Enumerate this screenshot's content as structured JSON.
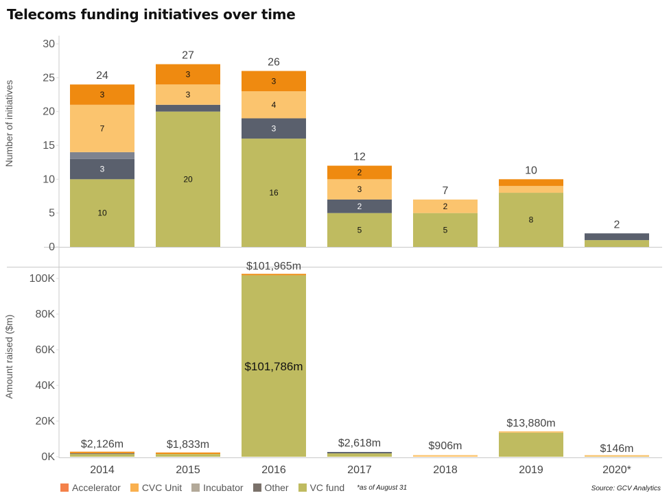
{
  "title": "Telecoms funding initiatives over time",
  "chart_data": [
    {
      "type": "bar",
      "stacked": true,
      "title": "Telecoms funding initiatives over time",
      "ylabel": "Number of initiatives",
      "xlabel": "",
      "ylim": [
        0,
        30
      ],
      "yticks": [
        0,
        5,
        10,
        15,
        20,
        25,
        30
      ],
      "ytick_labels": [
        "0",
        "5",
        "10",
        "15",
        "20",
        "25",
        "30"
      ],
      "categories": [
        "2014",
        "2015",
        "2016",
        "2017",
        "2018",
        "2019",
        "2020*"
      ],
      "series": [
        {
          "name": "VC fund",
          "color": "#BFBB60",
          "values": [
            10,
            20,
            16,
            5,
            5,
            8,
            1
          ],
          "labels": [
            "10",
            "20",
            "16",
            "5",
            "5",
            "8",
            ""
          ]
        },
        {
          "name": "Other",
          "color": "#5A606D",
          "values": [
            3,
            1,
            3,
            2,
            0,
            0,
            1
          ],
          "labels": [
            "3",
            "",
            "3",
            "2",
            "",
            "",
            ""
          ]
        },
        {
          "name": "Incubator",
          "color": "#7E838F",
          "values": [
            1,
            0,
            0,
            0,
            0,
            0,
            0
          ],
          "labels": [
            "",
            "",
            "",
            "",
            "",
            "",
            ""
          ]
        },
        {
          "name": "CVC Unit",
          "color": "#FBC46E",
          "values": [
            7,
            3,
            4,
            3,
            2,
            1,
            0
          ],
          "labels": [
            "7",
            "3",
            "4",
            "3",
            "2",
            "",
            ""
          ]
        },
        {
          "name": "Accelerator",
          "color": "#EF8A10",
          "values": [
            3,
            3,
            3,
            2,
            0,
            1,
            0
          ],
          "labels": [
            "3",
            "3",
            "3",
            "2",
            "",
            "",
            ""
          ]
        }
      ],
      "totals": [
        24,
        27,
        26,
        12,
        7,
        10,
        2
      ],
      "total_labels": [
        "24",
        "27",
        "26",
        "12",
        "7",
        "10",
        "2"
      ],
      "grid": false
    },
    {
      "type": "bar",
      "stacked": true,
      "ylabel": "Amount raised ($m)",
      "xlabel": "",
      "ylim": [
        0,
        100000
      ],
      "yticks": [
        0,
        20000,
        40000,
        60000,
        80000,
        100000
      ],
      "ytick_labels": [
        "0K",
        "20K",
        "40K",
        "60K",
        "80K",
        "100K"
      ],
      "categories": [
        "2014",
        "2015",
        "2016",
        "2017",
        "2018",
        "2019",
        "2020*"
      ],
      "series": [
        {
          "name": "VC fund",
          "color": "#BFBB60",
          "values": [
            1500,
            1500,
            101786,
            1900,
            0,
            13500,
            120
          ]
        },
        {
          "name": "Other",
          "color": "#5A606D",
          "values": [
            350,
            0,
            0,
            718,
            0,
            0,
            0
          ]
        },
        {
          "name": "Incubator",
          "color": "#B3A999",
          "values": [
            0,
            0,
            0,
            0,
            0,
            0,
            0
          ]
        },
        {
          "name": "CVC Unit",
          "color": "#FBC46E",
          "values": [
            200,
            100,
            0,
            0,
            906,
            380,
            26
          ]
        },
        {
          "name": "Accelerator",
          "color": "#EF8A10",
          "values": [
            76,
            233,
            179,
            0,
            0,
            0,
            0
          ]
        }
      ],
      "totals": [
        2126,
        1833,
        101965,
        2618,
        906,
        13880,
        146
      ],
      "total_labels": [
        "$2,126m",
        "$1,833m",
        "$101,965m",
        "$2,618m",
        "$906m",
        "$13,880m",
        "$146m"
      ],
      "inner_label": {
        "category": "2016",
        "text": "$101,786m"
      },
      "grid": false
    }
  ],
  "legend": {
    "placement": "bottom-left",
    "items": [
      {
        "label": "Accelerator",
        "color": "#F4814A"
      },
      {
        "label": "CVC Unit",
        "color": "#F9B04F"
      },
      {
        "label": "Incubator",
        "color": "#B3A999"
      },
      {
        "label": "Other",
        "color": "#7A716A"
      },
      {
        "label": "VC fund",
        "color": "#BFBB60"
      }
    ],
    "note": "*as of August 31"
  },
  "source": "Source: GCV Analytics"
}
